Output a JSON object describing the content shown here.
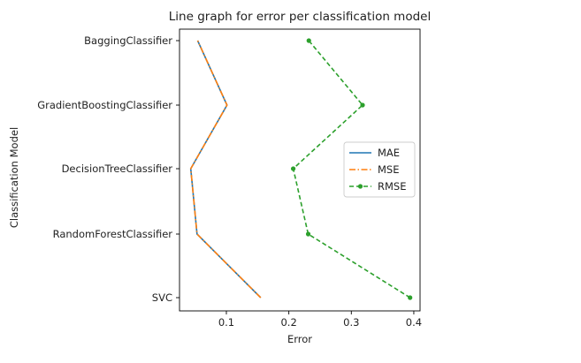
{
  "chart_data": {
    "type": "line",
    "title": "Line graph for error per classification model",
    "xlabel": "Error",
    "ylabel": "Classification Model",
    "categories": [
      "SVC",
      "RandomForestClassifier",
      "DecisionTreeClassifier",
      "GradientBoostingClassifier",
      "BaggingClassifier"
    ],
    "xlim": [
      0.025,
      0.41
    ],
    "xticks": [
      0.1,
      0.2,
      0.3,
      0.4
    ],
    "xtick_labels": [
      "0.1",
      "0.2",
      "0.3",
      "0.4"
    ],
    "grid": false,
    "legend_position": "center-right",
    "series": [
      {
        "name": "MAE",
        "color": "#1f77b4",
        "style": "solid",
        "marker": "none",
        "values": [
          0.155,
          0.053,
          0.043,
          0.101,
          0.054
        ]
      },
      {
        "name": "MSE",
        "color": "#ff7f0e",
        "style": "dashdot",
        "marker": "none",
        "values": [
          0.155,
          0.053,
          0.043,
          0.101,
          0.054
        ]
      },
      {
        "name": "RMSE",
        "color": "#2ca02c",
        "style": "dashed",
        "marker": "dot",
        "values": [
          0.394,
          0.231,
          0.207,
          0.318,
          0.232
        ]
      }
    ]
  }
}
